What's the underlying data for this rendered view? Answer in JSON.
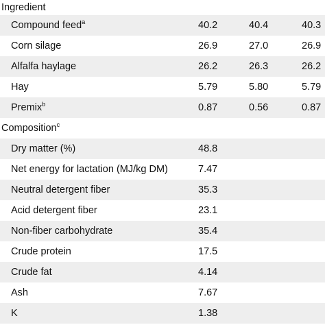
{
  "sections": [
    {
      "heading": "Ingredient",
      "heading_sup": "",
      "rows": [
        {
          "label": "Compound feed",
          "sup": "a",
          "v1": "40.2",
          "v2": "40.4",
          "v3": "40.3"
        },
        {
          "label": "Corn silage",
          "sup": "",
          "v1": "26.9",
          "v2": "27.0",
          "v3": "26.9"
        },
        {
          "label": "Alfalfa haylage",
          "sup": "",
          "v1": "26.2",
          "v2": "26.3",
          "v3": "26.2"
        },
        {
          "label": "Hay",
          "sup": "",
          "v1": "5.79",
          "v2": "5.80",
          "v3": "5.79"
        },
        {
          "label": "Premix",
          "sup": "b",
          "v1": "0.87",
          "v2": "0.56",
          "v3": "0.87"
        }
      ]
    },
    {
      "heading": "Composition",
      "heading_sup": "c",
      "rows": [
        {
          "label": "Dry matter (%)",
          "sup": "",
          "v1": "48.8",
          "v2": "",
          "v3": ""
        },
        {
          "label": "Net energy for lactation (MJ/kg DM)",
          "sup": "",
          "v1": "7.47",
          "v2": "",
          "v3": ""
        },
        {
          "label": "Neutral detergent fiber",
          "sup": "",
          "v1": "35.3",
          "v2": "",
          "v3": ""
        },
        {
          "label": "Acid detergent fiber",
          "sup": "",
          "v1": "23.1",
          "v2": "",
          "v3": ""
        },
        {
          "label": "Non-fiber carbohydrate",
          "sup": "",
          "v1": "35.4",
          "v2": "",
          "v3": ""
        },
        {
          "label": "Crude protein",
          "sup": "",
          "v1": "17.5",
          "v2": "",
          "v3": ""
        },
        {
          "label": "Crude fat",
          "sup": "",
          "v1": "4.14",
          "v2": "",
          "v3": ""
        },
        {
          "label": "Ash",
          "sup": "",
          "v1": "7.67",
          "v2": "",
          "v3": ""
        },
        {
          "label": "K",
          "sup": "",
          "v1": "1.38",
          "v2": "",
          "v3": ""
        }
      ]
    }
  ],
  "colors": {
    "row_shade": "#eeeeee",
    "text": "#111111"
  }
}
